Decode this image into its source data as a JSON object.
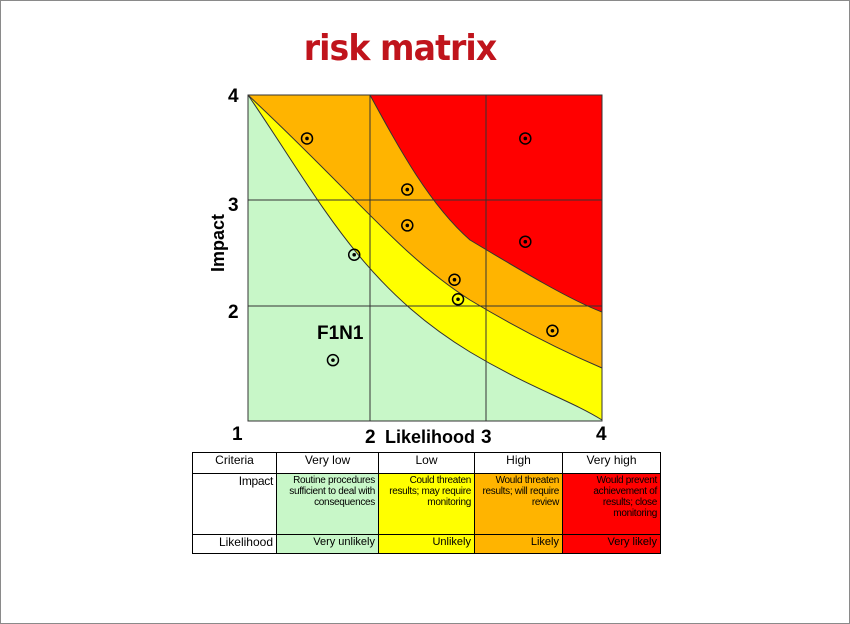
{
  "title": "risk matrix",
  "colors": {
    "very_low": "#c8f7c8",
    "low": "#ffff00",
    "high": "#ffb400",
    "very_high": "#ff0000"
  },
  "chart_data": {
    "type": "scatter",
    "xlabel": "Likelihood",
    "ylabel": "Impact",
    "xlim": [
      1,
      4
    ],
    "ylim": [
      1,
      4
    ],
    "x_ticks": [
      "1",
      "2",
      "3",
      "4"
    ],
    "y_ticks": [
      "2",
      "3",
      "4"
    ],
    "grid": true,
    "zone_label": "F1N1",
    "points": [
      {
        "x": 1.5,
        "y": 3.6
      },
      {
        "x": 3.35,
        "y": 3.6
      },
      {
        "x": 2.35,
        "y": 3.13
      },
      {
        "x": 2.35,
        "y": 2.8
      },
      {
        "x": 3.35,
        "y": 2.65
      },
      {
        "x": 1.9,
        "y": 2.53
      },
      {
        "x": 2.75,
        "y": 2.3
      },
      {
        "x": 2.78,
        "y": 2.12
      },
      {
        "x": 3.58,
        "y": 1.83
      },
      {
        "x": 1.72,
        "y": 1.56
      }
    ]
  },
  "legend_table": {
    "headers": [
      "Criteria",
      "Very low",
      "Low",
      "High",
      "Very high"
    ],
    "impact_label": "Impact",
    "impact": [
      "Routine procedures sufficient to deal with consequences",
      "Could threaten results; may require monitoring",
      "Would threaten results; will require review",
      "Would prevent achievement of results; close monitoring"
    ],
    "likelihood_label": "Likelihood",
    "likelihood": [
      "Very unlikely",
      "Unlikely",
      "Likely",
      "Very likely"
    ]
  }
}
